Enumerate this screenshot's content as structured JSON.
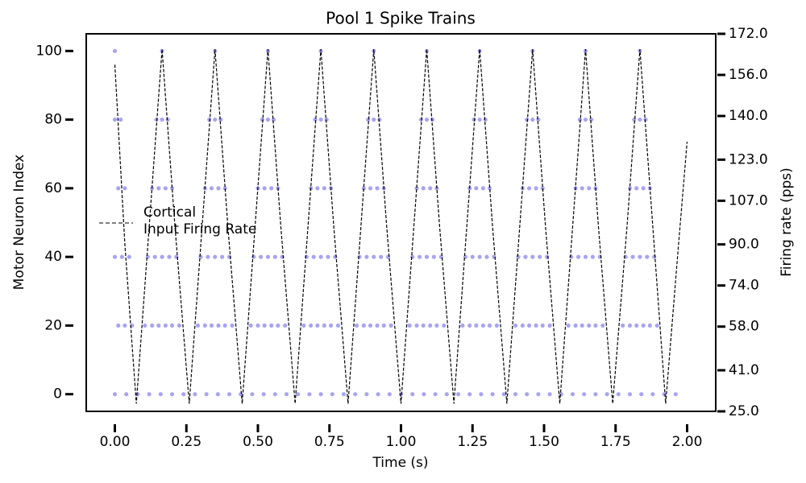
{
  "chart_data": {
    "type": "raster",
    "title": "Pool 1 Spike Trains",
    "x_label": "Time (s)",
    "y_label": "Motor Neuron Index",
    "y2_label": "Firing rate (pps)",
    "xlim": [
      -0.1,
      2.1
    ],
    "ylim": [
      -5,
      105
    ],
    "y2lim": [
      25,
      172
    ],
    "xticks": [
      {
        "value": 0,
        "label": "0.00"
      },
      {
        "value": 0.25,
        "label": "0.25"
      },
      {
        "value": 0.5,
        "label": "0.50"
      },
      {
        "value": 0.75,
        "label": "0.75"
      },
      {
        "value": 1,
        "label": "1.00"
      },
      {
        "value": 1.25,
        "label": "1.25"
      },
      {
        "value": 1.5,
        "label": "1.50"
      },
      {
        "value": 1.75,
        "label": "1.75"
      },
      {
        "value": 2,
        "label": "2.00"
      }
    ],
    "yticks": [
      0,
      20,
      40,
      60,
      80,
      100
    ],
    "y2ticks": [
      {
        "value": 25,
        "label": "25.0"
      },
      {
        "value": 41,
        "label": "41.0"
      },
      {
        "value": 58,
        "label": "58.0"
      },
      {
        "value": 74,
        "label": "74.0"
      },
      {
        "value": 90,
        "label": "90.0"
      },
      {
        "value": 107,
        "label": "107.0"
      },
      {
        "value": 123,
        "label": "123.0"
      },
      {
        "value": 140,
        "label": "140.0"
      },
      {
        "value": 156,
        "label": "156.0"
      },
      {
        "value": 172,
        "label": "172.0"
      }
    ],
    "spike_color": "#a8a4f2",
    "spike_trains": [
      {
        "neuron": 100,
        "times": [
          0,
          0.165,
          0.35,
          0.535,
          0.72,
          0.905,
          1.09,
          1.275,
          1.46,
          1.645,
          1.835
        ]
      },
      {
        "neuron": 80,
        "times": [
          0,
          0.02,
          0.145,
          0.165,
          0.185,
          0.33,
          0.35,
          0.37,
          0.515,
          0.535,
          0.555,
          0.7,
          0.72,
          0.74,
          0.885,
          0.905,
          0.925,
          1.07,
          1.09,
          1.11,
          1.255,
          1.275,
          1.295,
          1.44,
          1.46,
          1.48,
          1.625,
          1.645,
          1.665,
          1.815,
          1.835,
          1.855
        ]
      },
      {
        "neuron": 60,
        "times": [
          0.012,
          0.035,
          0.13,
          0.153,
          0.177,
          0.2,
          0.315,
          0.338,
          0.362,
          0.385,
          0.5,
          0.523,
          0.547,
          0.57,
          0.685,
          0.708,
          0.732,
          0.755,
          0.87,
          0.893,
          0.917,
          0.94,
          1.055,
          1.078,
          1.102,
          1.125,
          1.24,
          1.263,
          1.287,
          1.31,
          1.425,
          1.448,
          1.472,
          1.495,
          1.61,
          1.633,
          1.657,
          1.68,
          1.8,
          1.823,
          1.847,
          1.87
        ]
      },
      {
        "neuron": 40,
        "times": [
          0,
          0.025,
          0.05,
          0.115,
          0.14,
          0.165,
          0.19,
          0.215,
          0.3,
          0.325,
          0.35,
          0.375,
          0.4,
          0.485,
          0.51,
          0.535,
          0.56,
          0.585,
          0.67,
          0.695,
          0.72,
          0.745,
          0.77,
          0.855,
          0.88,
          0.905,
          0.93,
          0.955,
          1.04,
          1.065,
          1.09,
          1.115,
          1.14,
          1.225,
          1.25,
          1.275,
          1.3,
          1.325,
          1.41,
          1.435,
          1.46,
          1.485,
          1.51,
          1.595,
          1.62,
          1.645,
          1.67,
          1.695,
          1.785,
          1.81,
          1.835,
          1.86,
          1.885
        ]
      },
      {
        "neuron": 20,
        "times": [
          0.012,
          0.035,
          0.06,
          0.105,
          0.13,
          0.153,
          0.177,
          0.2,
          0.225,
          0.29,
          0.315,
          0.338,
          0.362,
          0.385,
          0.41,
          0.475,
          0.5,
          0.523,
          0.547,
          0.57,
          0.595,
          0.66,
          0.685,
          0.708,
          0.732,
          0.755,
          0.78,
          0.845,
          0.87,
          0.893,
          0.917,
          0.94,
          0.965,
          1.03,
          1.055,
          1.078,
          1.102,
          1.125,
          1.15,
          1.215,
          1.24,
          1.263,
          1.287,
          1.31,
          1.335,
          1.4,
          1.425,
          1.448,
          1.472,
          1.495,
          1.52,
          1.585,
          1.61,
          1.633,
          1.657,
          1.68,
          1.705,
          1.775,
          1.8,
          1.823,
          1.847,
          1.87,
          1.895
        ]
      },
      {
        "neuron": 0,
        "times": [
          0,
          0.04,
          0.08,
          0.12,
          0.16,
          0.2,
          0.24,
          0.28,
          0.32,
          0.36,
          0.4,
          0.44,
          0.48,
          0.52,
          0.56,
          0.6,
          0.64,
          0.68,
          0.72,
          0.76,
          0.8,
          0.84,
          0.88,
          0.92,
          0.96,
          1,
          1.04,
          1.08,
          1.12,
          1.16,
          1.2,
          1.24,
          1.28,
          1.32,
          1.36,
          1.4,
          1.44,
          1.48,
          1.52,
          1.56,
          1.6,
          1.64,
          1.68,
          1.72,
          1.76,
          1.8,
          1.84,
          1.88,
          1.92,
          1.96
        ]
      }
    ],
    "series": [
      {
        "name": "Cortical\nInput Firing Rate",
        "color": "#000000",
        "axis": "y2",
        "x": [
          0,
          0.035,
          0.075,
          0.12,
          0.165,
          0.21,
          0.26,
          0.305,
          0.35,
          0.395,
          0.445,
          0.49,
          0.535,
          0.58,
          0.63,
          0.675,
          0.72,
          0.765,
          0.815,
          0.86,
          0.905,
          0.95,
          1.0,
          1.045,
          1.09,
          1.135,
          1.185,
          1.23,
          1.275,
          1.32,
          1.37,
          1.415,
          1.46,
          1.505,
          1.555,
          1.6,
          1.645,
          1.69,
          1.74,
          1.79,
          1.835,
          1.88,
          1.925,
          1.97,
          2.0
        ],
        "values": [
          160,
          90,
          28,
          97,
          166,
          97,
          28,
          97,
          166,
          97,
          28,
          97,
          166,
          97,
          28,
          97,
          166,
          97,
          28,
          97,
          166,
          97,
          28,
          97,
          166,
          97,
          28,
          97,
          166,
          97,
          28,
          97,
          166,
          97,
          28,
          97,
          166,
          97,
          28,
          97,
          166,
          97,
          28,
          90,
          130
        ]
      }
    ]
  }
}
